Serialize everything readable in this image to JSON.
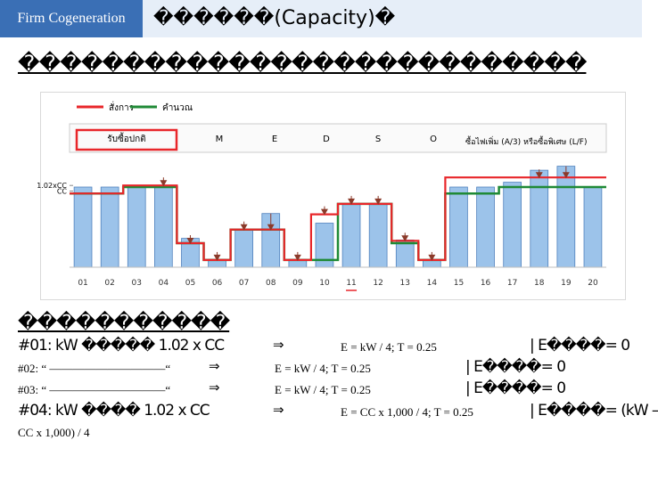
{
  "header": {
    "tab_label": "Firm Cogeneration",
    "title": "������(Capacity)�"
  },
  "subtitle": "���������������������������",
  "section_heading": "�����������",
  "legend": {
    "command": "สั่งการ",
    "calculated": "คำนวณ",
    "buy_extra": "ซื้อไฟเพิ่ม (A/3) หรือซื้อพิเศษ (L/F)"
  },
  "colors": {
    "bar_fill": "#9cc3ea",
    "bar_stroke": "#4f81bd",
    "command_line": "#e8262a",
    "calc_line": "#1f8a36",
    "arrow": "#8b3a2a",
    "header_bg": "#3a6fb5"
  },
  "chart_data": {
    "type": "bar",
    "categories": [
      "01",
      "02",
      "03",
      "04",
      "05",
      "06",
      "07",
      "08",
      "09",
      "10",
      "11",
      "12",
      "13",
      "14",
      "15",
      "16",
      "17",
      "18",
      "19",
      "20"
    ],
    "bar_values": [
      1.0,
      1.0,
      1.02,
      1.02,
      0.36,
      0.1,
      0.47,
      0.67,
      0.1,
      0.55,
      0.79,
      0.79,
      0.34,
      0.1,
      1.0,
      1.0,
      1.06,
      1.21,
      1.26,
      1.0
    ],
    "command_line": [
      0.92,
      0.92,
      1.02,
      1.02,
      0.3,
      0.09,
      0.47,
      0.47,
      0.09,
      0.66,
      0.79,
      0.79,
      0.33,
      0.09,
      1.12,
      1.12,
      1.12,
      1.12,
      1.12,
      1.12
    ],
    "calc_line": [
      0.92,
      0.92,
      1.0,
      1.0,
      0.3,
      0.09,
      0.47,
      0.47,
      0.09,
      0.09,
      0.79,
      0.79,
      0.3,
      0.09,
      0.92,
      0.92,
      1.0,
      1.0,
      1.0,
      1.0
    ],
    "arrows": [
      "04",
      "05",
      "06",
      "07",
      "08",
      "09",
      "10",
      "11",
      "12",
      "13",
      "14",
      "18",
      "19"
    ],
    "y_ticks": [
      {
        "label": "1.02xCC",
        "value": 1.02
      },
      {
        "label": "CC",
        "value": 0.95
      }
    ],
    "ylim": [
      0,
      1.4
    ],
    "mode_labels": [
      "รับซื้อปกติ",
      "M",
      "E",
      "D",
      "S",
      "O"
    ],
    "highlighted_mode": "รับซื้อปกติ",
    "highlighted_category": "11"
  },
  "rules": [
    {
      "left": "#01: kW ����� 1.02 x CC",
      "right": "E = kW / 4; T = 0.25",
      "cond": "| E����= 0"
    },
    {
      "left": "#02: “ ——————————“",
      "right": "E = kW / 4; T = 0.25",
      "cond": "| E����= 0"
    },
    {
      "left": "#03: “ ——————————“",
      "right": "E = kW / 4; T = 0.25",
      "cond": "| E����= 0"
    },
    {
      "left": "#04: kW ���� 1.02 x CC",
      "right": "E = CC x 1,000 / 4; T = 0.25",
      "cond": "| E����= (kW –",
      "cont": "CC x 1,000) / 4"
    }
  ],
  "arrow_symbol": "⇒"
}
